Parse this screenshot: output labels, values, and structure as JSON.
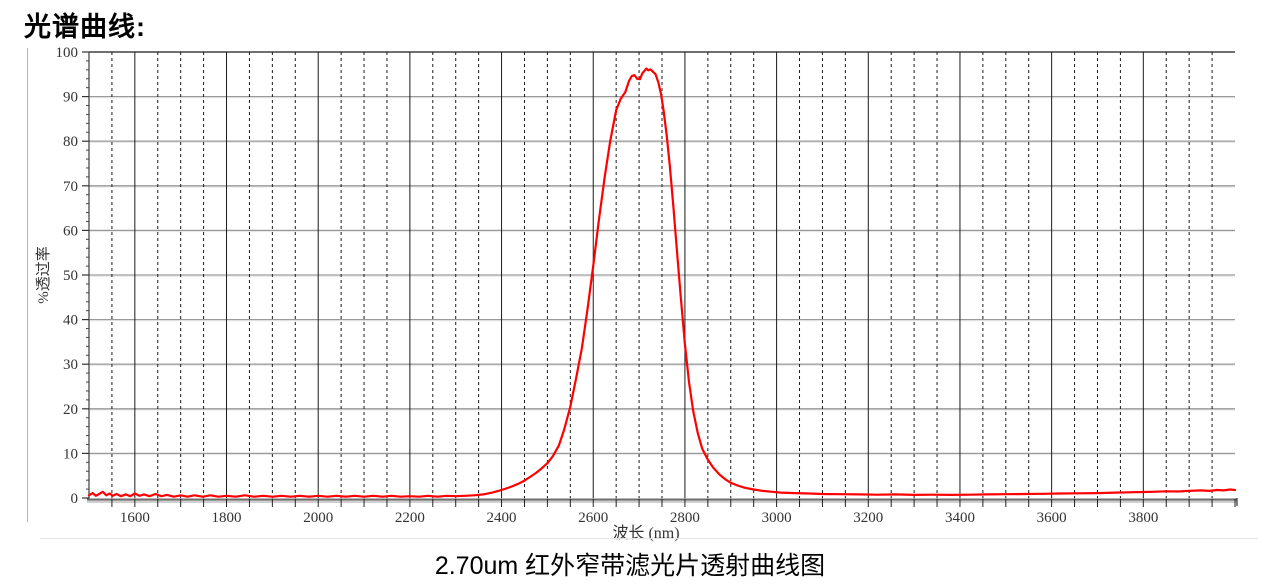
{
  "page": {
    "title": "光谱曲线:",
    "caption": "2.70um 红外窄带滤光片透射曲线图"
  },
  "colors": {
    "curve": "#ff0000",
    "grid_dark": "#1a1a1a",
    "grid_gray": "#9a9a9a",
    "grid_gray_light": "#e6e6e6",
    "axis_dark": "#4a4a4a",
    "axis_bar_dark": "#6e6e6e",
    "axis_bar_light": "#cfcfcf",
    "tick_label": "#333333"
  },
  "chart_data": {
    "type": "line",
    "title": "",
    "xlabel": "波长 (nm)",
    "ylabel": "%透过率",
    "xlim": [
      1500,
      4000
    ],
    "ylim": [
      0,
      100
    ],
    "x_major_ticks": [
      1600,
      1800,
      2000,
      2200,
      2400,
      2600,
      2800,
      3000,
      3200,
      3400,
      3600,
      3800
    ],
    "x_minor_step": 50,
    "y_major_ticks": [
      0,
      10,
      20,
      30,
      40,
      50,
      60,
      70,
      80,
      90,
      100
    ],
    "y_minor_step": 2,
    "grid": {
      "vertical": "dashed black every 50nm, solid black every 200nm",
      "horizontal": "solid gray every 10%"
    },
    "legend": "none",
    "series": [
      {
        "name": "transmittance",
        "color": "#ff0000",
        "points": [
          [
            1500,
            0.6
          ],
          [
            1508,
            1.1
          ],
          [
            1515,
            0.5
          ],
          [
            1522,
            0.9
          ],
          [
            1530,
            1.4
          ],
          [
            1538,
            0.6
          ],
          [
            1545,
            1.0
          ],
          [
            1552,
            0.5
          ],
          [
            1560,
            0.9
          ],
          [
            1570,
            0.4
          ],
          [
            1580,
            0.8
          ],
          [
            1590,
            0.4
          ],
          [
            1600,
            1.0
          ],
          [
            1610,
            0.5
          ],
          [
            1620,
            0.8
          ],
          [
            1632,
            0.4
          ],
          [
            1645,
            0.9
          ],
          [
            1658,
            0.4
          ],
          [
            1670,
            0.7
          ],
          [
            1685,
            0.3
          ],
          [
            1700,
            0.6
          ],
          [
            1715,
            0.3
          ],
          [
            1730,
            0.6
          ],
          [
            1748,
            0.3
          ],
          [
            1765,
            0.6
          ],
          [
            1782,
            0.3
          ],
          [
            1800,
            0.5
          ],
          [
            1820,
            0.3
          ],
          [
            1840,
            0.6
          ],
          [
            1860,
            0.3
          ],
          [
            1880,
            0.5
          ],
          [
            1900,
            0.3
          ],
          [
            1920,
            0.5
          ],
          [
            1940,
            0.3
          ],
          [
            1960,
            0.5
          ],
          [
            1980,
            0.3
          ],
          [
            2000,
            0.5
          ],
          [
            2020,
            0.3
          ],
          [
            2040,
            0.5
          ],
          [
            2060,
            0.3
          ],
          [
            2080,
            0.5
          ],
          [
            2100,
            0.3
          ],
          [
            2120,
            0.5
          ],
          [
            2140,
            0.3
          ],
          [
            2160,
            0.5
          ],
          [
            2180,
            0.3
          ],
          [
            2200,
            0.4
          ],
          [
            2220,
            0.3
          ],
          [
            2240,
            0.5
          ],
          [
            2260,
            0.3
          ],
          [
            2280,
            0.5
          ],
          [
            2300,
            0.4
          ],
          [
            2320,
            0.5
          ],
          [
            2340,
            0.6
          ],
          [
            2360,
            0.8
          ],
          [
            2380,
            1.2
          ],
          [
            2400,
            1.8
          ],
          [
            2412,
            2.2
          ],
          [
            2425,
            2.7
          ],
          [
            2437,
            3.2
          ],
          [
            2450,
            3.9
          ],
          [
            2462,
            4.7
          ],
          [
            2475,
            5.6
          ],
          [
            2487,
            6.6
          ],
          [
            2500,
            7.8
          ],
          [
            2512,
            9.4
          ],
          [
            2525,
            11.8
          ],
          [
            2537,
            15.5
          ],
          [
            2550,
            20.5
          ],
          [
            2562,
            26.5
          ],
          [
            2575,
            33.5
          ],
          [
            2587,
            42
          ],
          [
            2600,
            52
          ],
          [
            2612,
            62
          ],
          [
            2625,
            72
          ],
          [
            2637,
            80
          ],
          [
            2650,
            87
          ],
          [
            2660,
            89.5
          ],
          [
            2670,
            91
          ],
          [
            2678,
            93.5
          ],
          [
            2684,
            94.6
          ],
          [
            2690,
            94.8
          ],
          [
            2696,
            94.0
          ],
          [
            2702,
            93.9
          ],
          [
            2707,
            95.2
          ],
          [
            2712,
            95.8
          ],
          [
            2716,
            96.3
          ],
          [
            2720,
            95.9
          ],
          [
            2725,
            96.1
          ],
          [
            2730,
            95.6
          ],
          [
            2736,
            95.0
          ],
          [
            2742,
            93.2
          ],
          [
            2748,
            90.5
          ],
          [
            2754,
            86.5
          ],
          [
            2760,
            81.5
          ],
          [
            2767,
            74.5
          ],
          [
            2775,
            65
          ],
          [
            2783,
            55
          ],
          [
            2791,
            45
          ],
          [
            2800,
            34.5
          ],
          [
            2809,
            26
          ],
          [
            2818,
            19.5
          ],
          [
            2828,
            14.5
          ],
          [
            2838,
            11
          ],
          [
            2850,
            8.6
          ],
          [
            2862,
            6.8
          ],
          [
            2875,
            5.3
          ],
          [
            2888,
            4.2
          ],
          [
            2900,
            3.4
          ],
          [
            2915,
            2.8
          ],
          [
            2930,
            2.3
          ],
          [
            2950,
            1.9
          ],
          [
            2970,
            1.6
          ],
          [
            2990,
            1.4
          ],
          [
            3010,
            1.2
          ],
          [
            3040,
            1.1
          ],
          [
            3070,
            1.0
          ],
          [
            3100,
            0.9
          ],
          [
            3140,
            0.85
          ],
          [
            3180,
            0.8
          ],
          [
            3220,
            0.75
          ],
          [
            3260,
            0.8
          ],
          [
            3300,
            0.7
          ],
          [
            3340,
            0.75
          ],
          [
            3380,
            0.7
          ],
          [
            3420,
            0.75
          ],
          [
            3460,
            0.8
          ],
          [
            3500,
            0.85
          ],
          [
            3540,
            0.9
          ],
          [
            3580,
            0.95
          ],
          [
            3620,
            1.0
          ],
          [
            3660,
            1.05
          ],
          [
            3700,
            1.1
          ],
          [
            3740,
            1.2
          ],
          [
            3780,
            1.3
          ],
          [
            3820,
            1.4
          ],
          [
            3850,
            1.5
          ],
          [
            3875,
            1.45
          ],
          [
            3900,
            1.6
          ],
          [
            3925,
            1.7
          ],
          [
            3945,
            1.6
          ],
          [
            3960,
            1.8
          ],
          [
            3975,
            1.7
          ],
          [
            3990,
            1.9
          ],
          [
            4000,
            1.8
          ]
        ]
      }
    ]
  }
}
